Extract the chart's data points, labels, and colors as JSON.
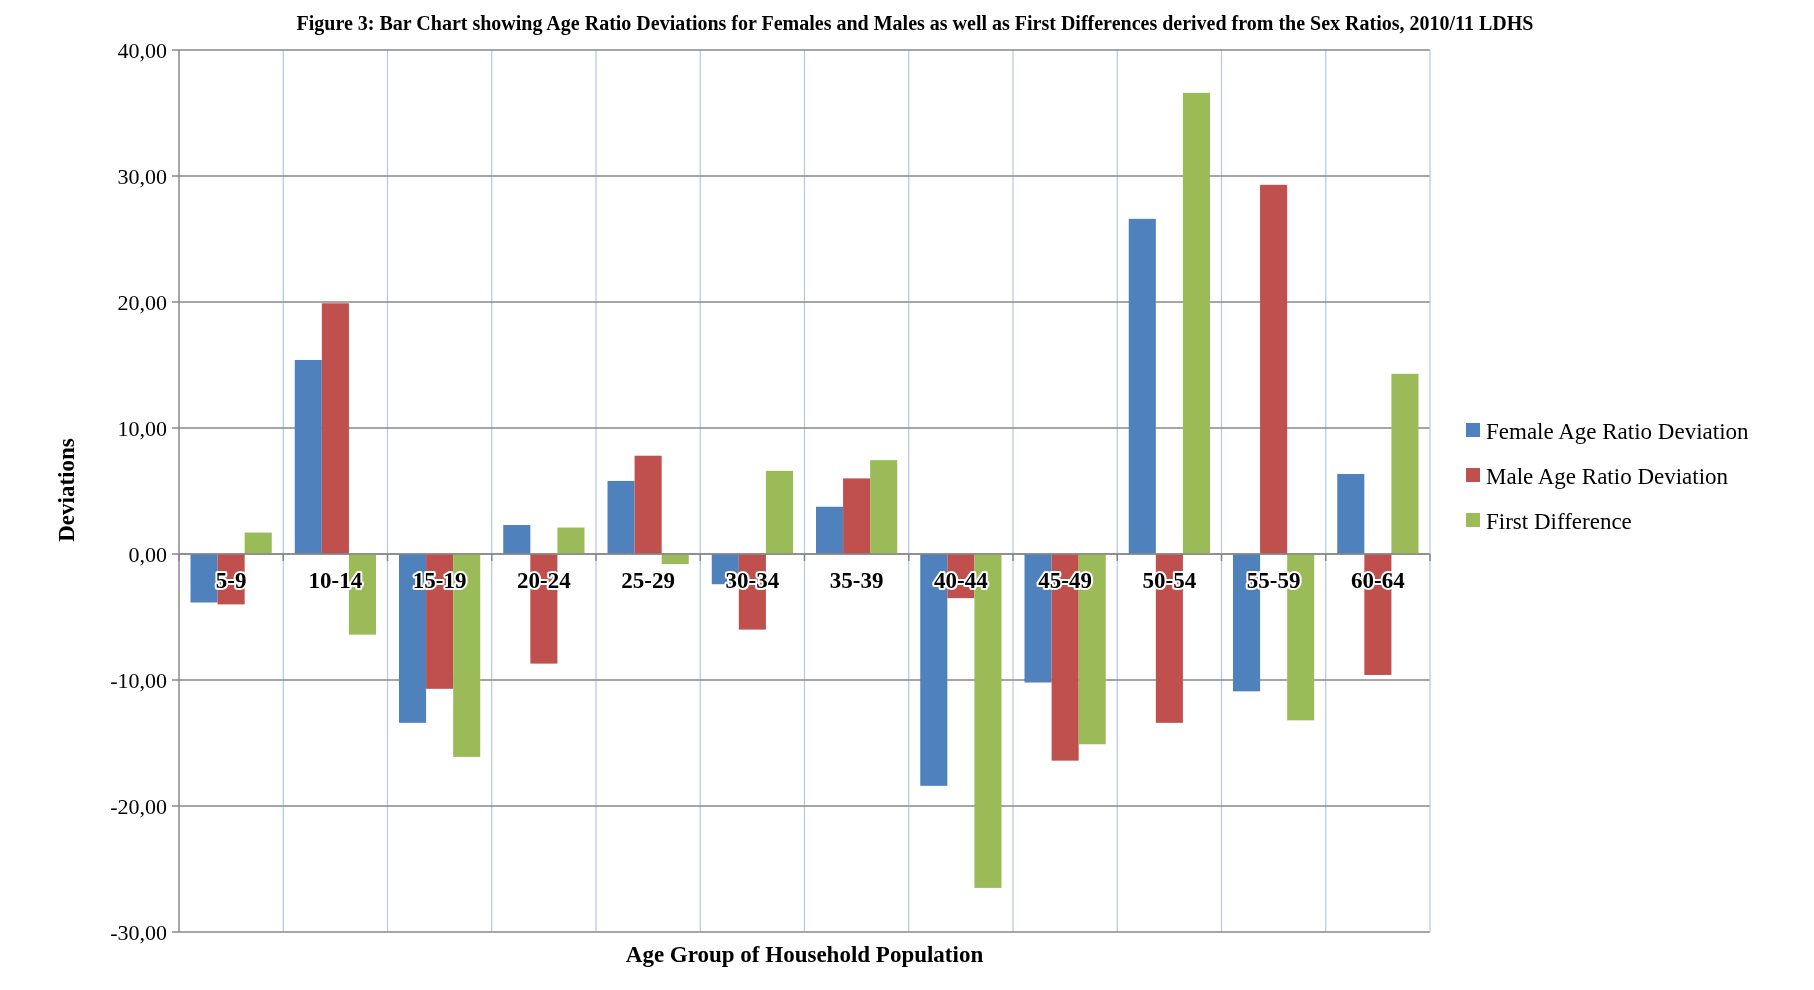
{
  "chart_data": {
    "type": "bar",
    "title": "Figure 3: Bar Chart showing Age Ratio Deviations for Females and Males as well as First Differences derived from the Sex Ratios, 2010/11 LDHS",
    "xlabel": "Age Group of Household Population",
    "ylabel": "Deviations",
    "categories": [
      "5-9",
      "10-14",
      "15-19",
      "20-24",
      "25-29",
      "30-34",
      "35-39",
      "40-44",
      "45-49",
      "50-54",
      "55-59",
      "60-64"
    ],
    "series": [
      {
        "name": "Female Age Ratio Deviation",
        "color": "#4f81bd",
        "values": [
          -3.85,
          15.4,
          -13.4,
          2.3,
          5.8,
          -2.4,
          3.75,
          -18.4,
          -10.2,
          26.6,
          -10.9,
          6.35
        ]
      },
      {
        "name": "Male Age Ratio Deviation",
        "color": "#c0504d",
        "values": [
          -4.0,
          19.9,
          -10.7,
          -8.7,
          7.8,
          -6.0,
          6.0,
          -3.5,
          -16.4,
          -13.4,
          29.3,
          -9.6
        ]
      },
      {
        "name": "First Difference",
        "color": "#9bbb59",
        "values": [
          1.7,
          -6.4,
          -16.1,
          2.1,
          -0.8,
          6.6,
          7.45,
          -26.5,
          -15.1,
          36.6,
          -13.2,
          14.3
        ]
      }
    ],
    "ylim": [
      -30,
      40
    ],
    "yticks": [
      {
        "value": -30,
        "label": "-30,00"
      },
      {
        "value": -20,
        "label": "-20,00"
      },
      {
        "value": -10,
        "label": "-10,00"
      },
      {
        "value": 0,
        "label": "0,00"
      },
      {
        "value": 10,
        "label": "10,00"
      },
      {
        "value": 20,
        "label": "20,00"
      },
      {
        "value": 30,
        "label": "30,00"
      },
      {
        "value": 40,
        "label": "40,00"
      }
    ],
    "grid": true,
    "legend": "right"
  }
}
